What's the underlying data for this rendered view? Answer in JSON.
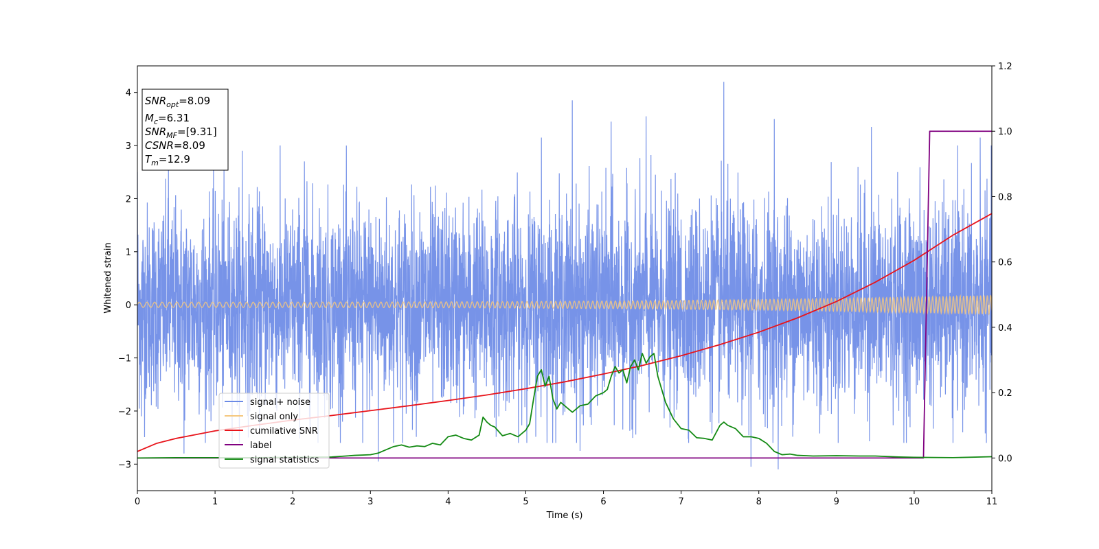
{
  "chart_data": {
    "type": "line",
    "xlabel": "Time (s)",
    "ylabel": "Whitened strain",
    "xlim": [
      0,
      11
    ],
    "ylim": [
      -3.5,
      4.5
    ],
    "y2lim": [
      -0.1,
      1.2
    ],
    "x_ticks": [
      "0",
      "1",
      "2",
      "3",
      "4",
      "5",
      "6",
      "7",
      "8",
      "9",
      "10",
      "11"
    ],
    "y_ticks": [
      "−3",
      "−2",
      "−1",
      "0",
      "1",
      "2",
      "3",
      "4"
    ],
    "y2_ticks": [
      "0.0",
      "0.2",
      "0.4",
      "0.6",
      "0.8",
      "1.0",
      "1.2"
    ],
    "grid": false,
    "legend_position": "lower-left",
    "annotation": {
      "lines": [
        {
          "symbol": "SNR",
          "sub": "opt",
          "value": "=8.09"
        },
        {
          "symbol": "M",
          "sub": "c",
          "value": "=6.31"
        },
        {
          "symbol": "SNR",
          "sub": "MF",
          "value": "=[9.31]"
        },
        {
          "symbol": "CSNR",
          "sub": "",
          "value": "=8.09"
        },
        {
          "symbol": "T",
          "sub": "m",
          "value": "=12.9"
        }
      ]
    },
    "series": [
      {
        "name": "signal+ noise",
        "axis": "left",
        "color": "#6b8ae6",
        "kind": "noise",
        "noise_std": 0.95,
        "spikes": [
          {
            "x": 0.0,
            "y": 2.5
          },
          {
            "x": 0.4,
            "y": 2.6
          },
          {
            "x": 0.6,
            "y": 2.55
          },
          {
            "x": 1.35,
            "y": 2.9
          },
          {
            "x": 2.15,
            "y": 2.7
          },
          {
            "x": 5.2,
            "y": 3.15
          },
          {
            "x": 5.6,
            "y": 3.85
          },
          {
            "x": 6.1,
            "y": 3.45
          },
          {
            "x": 6.55,
            "y": 3.55
          },
          {
            "x": 7.55,
            "y": 4.2
          },
          {
            "x": 8.2,
            "y": 3.5
          },
          {
            "x": 9.45,
            "y": 3.35
          },
          {
            "x": 10.85,
            "y": 3.15
          },
          {
            "x": 0.05,
            "y": -2.1
          },
          {
            "x": 0.6,
            "y": -2.8
          },
          {
            "x": 3.1,
            "y": -2.95
          },
          {
            "x": 5.7,
            "y": -2.75
          },
          {
            "x": 7.9,
            "y": -3.05
          },
          {
            "x": 8.25,
            "y": -3.1
          },
          {
            "x": 10.5,
            "y": -2.6
          },
          {
            "x": 2.9,
            "y": -2.6
          }
        ]
      },
      {
        "name": "signal only",
        "axis": "left",
        "color": "#f5c77e",
        "kind": "chirp",
        "amplitude_start": 0.05,
        "amplitude_end": 0.18
      },
      {
        "name": "cumilative SNR",
        "axis": "right",
        "color": "#e8141b",
        "x": [
          0,
          0.25,
          0.5,
          1,
          1.5,
          2,
          2.5,
          3,
          3.5,
          4,
          4.5,
          5,
          5.5,
          6,
          6.5,
          7,
          7.5,
          8,
          8.5,
          9,
          9.5,
          10,
          10.5,
          11
        ],
        "y": [
          0.02,
          0.045,
          0.06,
          0.083,
          0.1,
          0.116,
          0.13,
          0.145,
          0.16,
          0.176,
          0.193,
          0.212,
          0.233,
          0.257,
          0.283,
          0.313,
          0.347,
          0.385,
          0.429,
          0.479,
          0.538,
          0.605,
          0.682,
          0.748
        ]
      },
      {
        "name": "label",
        "axis": "right",
        "color": "#800080",
        "x": [
          0,
          10.12,
          10.2,
          11
        ],
        "y": [
          0,
          0,
          1,
          1
        ]
      },
      {
        "name": "signal statistics",
        "axis": "right",
        "color": "#138a13",
        "x": [
          0,
          0.5,
          1,
          1.5,
          2,
          2.5,
          2.8,
          3.0,
          3.1,
          3.2,
          3.3,
          3.4,
          3.5,
          3.6,
          3.7,
          3.8,
          3.9,
          4.0,
          4.1,
          4.2,
          4.3,
          4.4,
          4.45,
          4.5,
          4.55,
          4.6,
          4.7,
          4.8,
          4.9,
          5.0,
          5.05,
          5.1,
          5.15,
          5.2,
          5.25,
          5.3,
          5.35,
          5.4,
          5.45,
          5.5,
          5.6,
          5.7,
          5.8,
          5.9,
          6.0,
          6.05,
          6.1,
          6.15,
          6.2,
          6.25,
          6.3,
          6.35,
          6.4,
          6.45,
          6.5,
          6.55,
          6.6,
          6.65,
          6.7,
          6.8,
          6.9,
          7.0,
          7.1,
          7.2,
          7.3,
          7.4,
          7.5,
          7.55,
          7.6,
          7.7,
          7.8,
          7.9,
          8.0,
          8.1,
          8.2,
          8.3,
          8.4,
          8.5,
          8.7,
          9.0,
          9.3,
          9.5,
          9.8,
          10.0,
          10.5,
          11.0
        ],
        "y": [
          0.0,
          0.001,
          0.001,
          0.001,
          0.002,
          0.003,
          0.008,
          0.01,
          0.015,
          0.025,
          0.035,
          0.04,
          0.033,
          0.037,
          0.035,
          0.045,
          0.04,
          0.065,
          0.07,
          0.06,
          0.055,
          0.07,
          0.125,
          0.11,
          0.1,
          0.095,
          0.068,
          0.075,
          0.065,
          0.085,
          0.105,
          0.18,
          0.25,
          0.27,
          0.22,
          0.25,
          0.18,
          0.15,
          0.17,
          0.16,
          0.14,
          0.16,
          0.165,
          0.19,
          0.2,
          0.21,
          0.25,
          0.28,
          0.26,
          0.27,
          0.23,
          0.28,
          0.3,
          0.27,
          0.32,
          0.29,
          0.31,
          0.32,
          0.25,
          0.17,
          0.12,
          0.09,
          0.085,
          0.062,
          0.06,
          0.055,
          0.1,
          0.11,
          0.1,
          0.09,
          0.065,
          0.065,
          0.06,
          0.045,
          0.02,
          0.01,
          0.012,
          0.008,
          0.006,
          0.007,
          0.006,
          0.006,
          0.003,
          0.002,
          0.001,
          0.004
        ]
      }
    ]
  }
}
